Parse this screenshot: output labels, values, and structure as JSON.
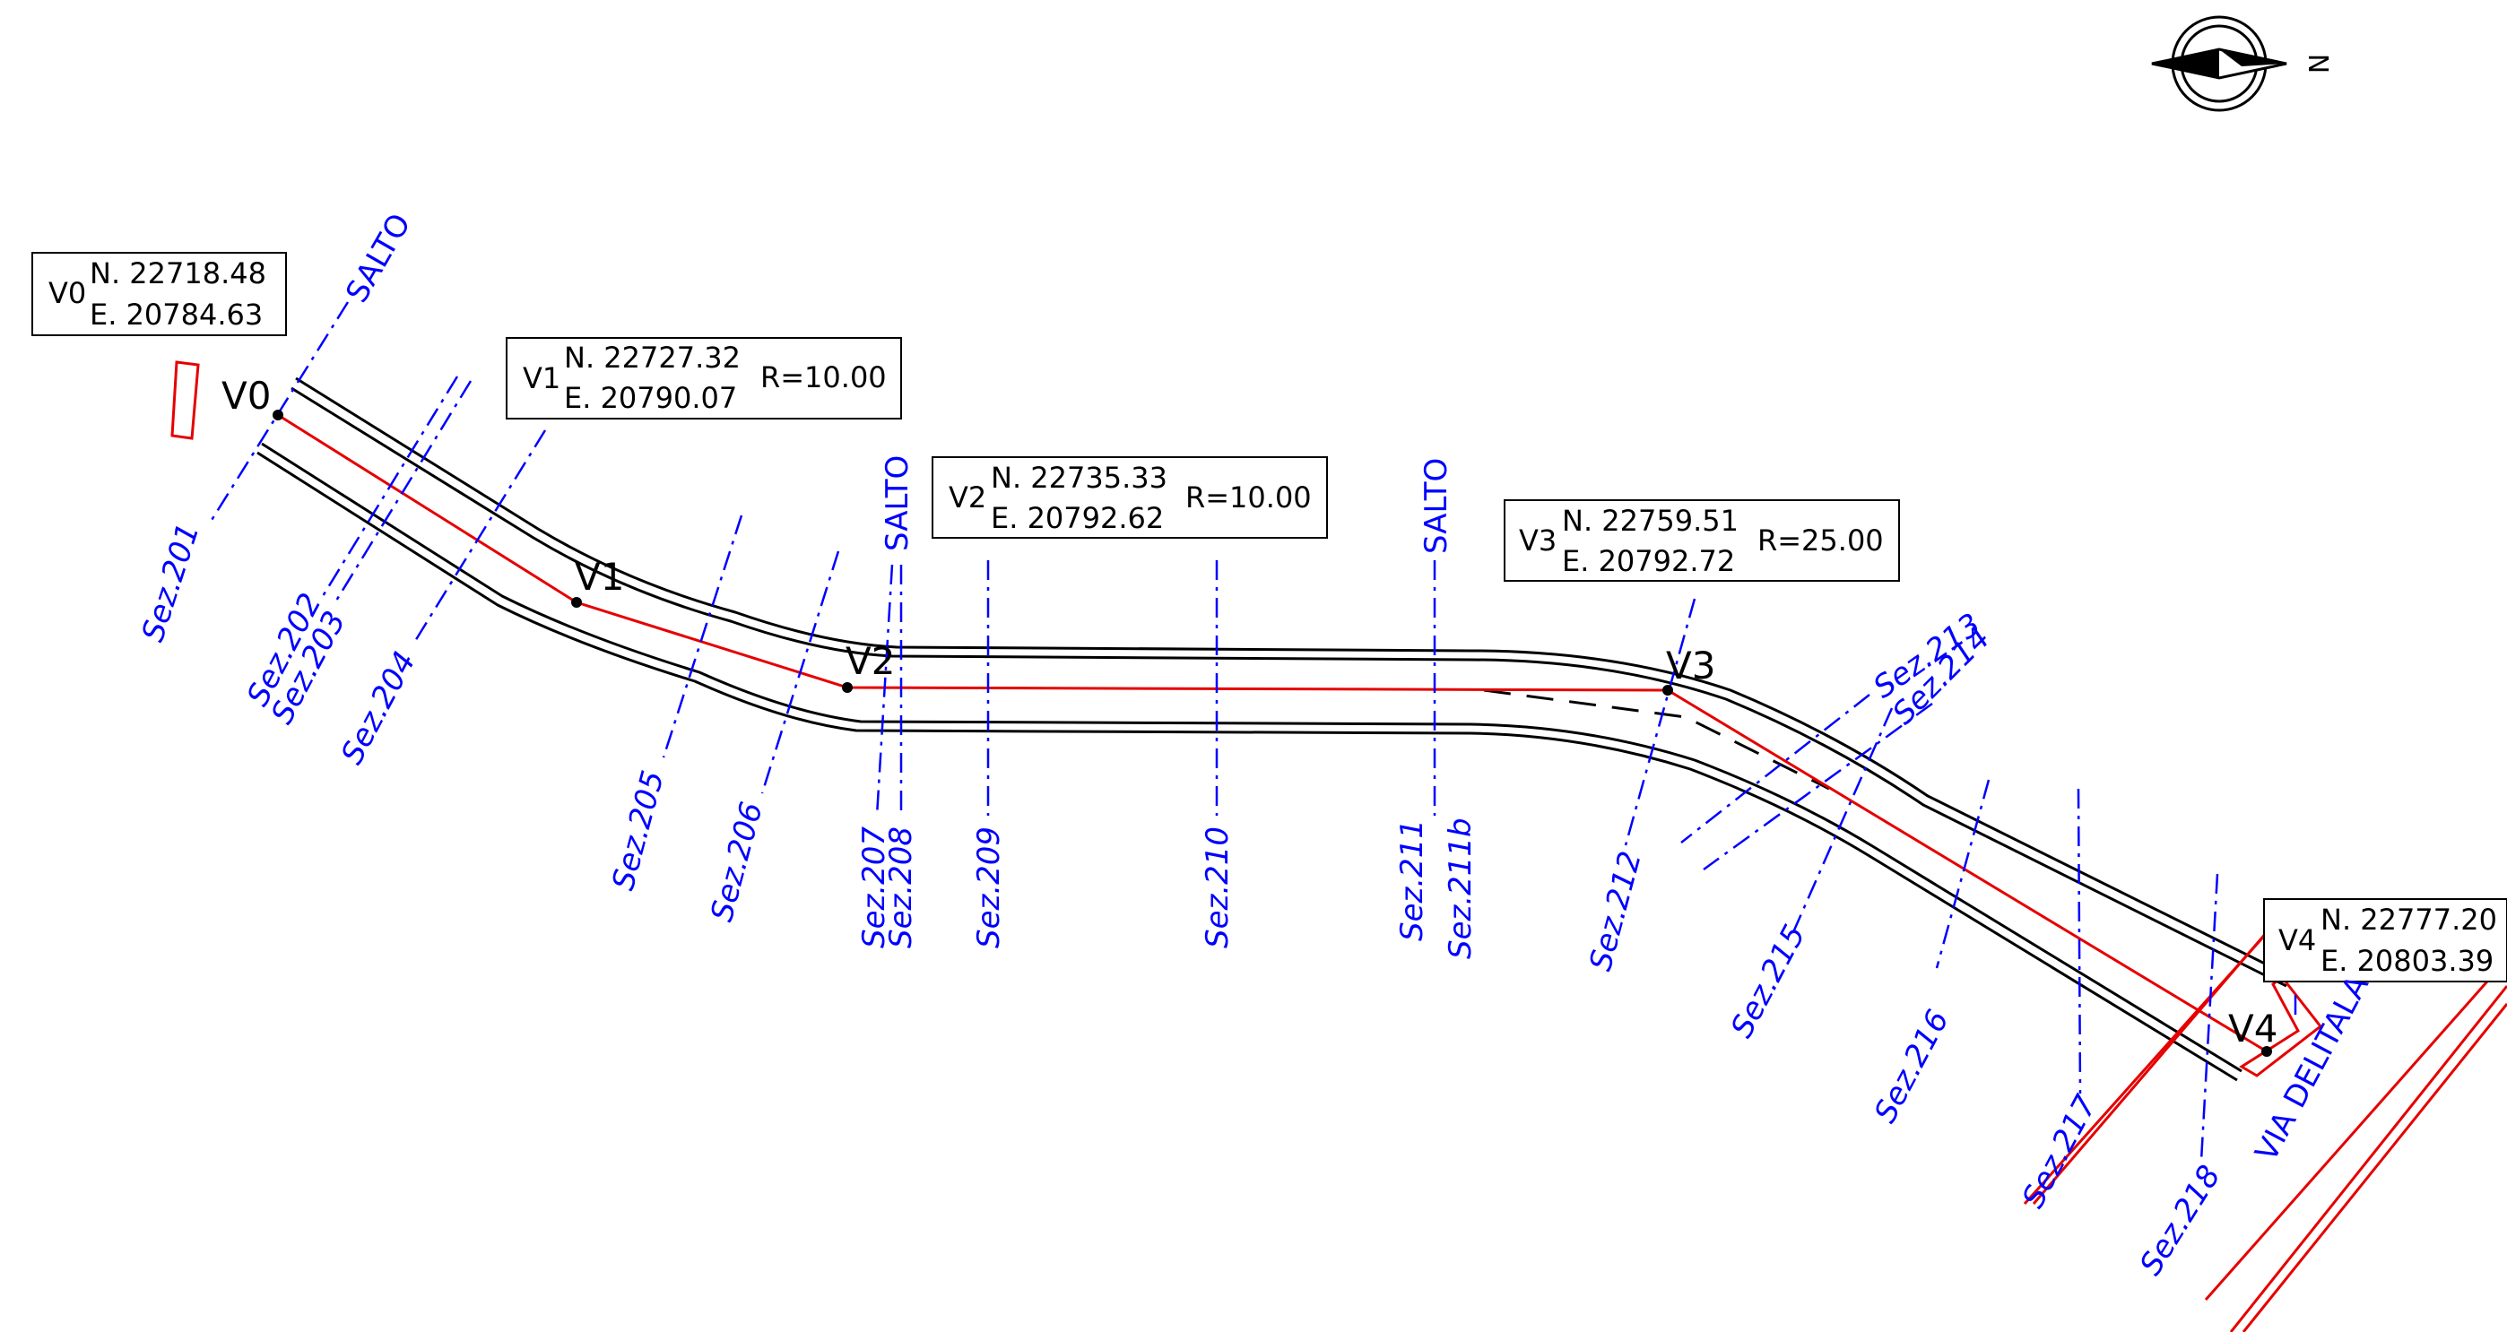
{
  "colors": {
    "alignment": "#e60000",
    "road_edge": "#000000",
    "section_line": "#0000ff",
    "background": "#ffffff"
  },
  "north": {
    "icon": "north-arrow-icon",
    "label": "N"
  },
  "vertices": [
    {
      "id": "V0",
      "label": "V0",
      "north": "N. 22718.48",
      "east": "E. 20784.63",
      "radius": ""
    },
    {
      "id": "V1",
      "label": "V1",
      "north": "N. 22727.32",
      "east": "E. 20790.07",
      "radius": "R=10.00"
    },
    {
      "id": "V2",
      "label": "V2",
      "north": "N. 22735.33",
      "east": "E. 20792.62",
      "radius": "R=10.00"
    },
    {
      "id": "V3",
      "label": "V3",
      "north": "N. 22759.51",
      "east": "E. 20792.72",
      "radius": "R=25.00"
    },
    {
      "id": "V4",
      "label": "V4",
      "north": "N. 22777.20",
      "east": "E. 20803.39",
      "radius": ""
    }
  ],
  "sections": [
    "Sez.201",
    "Sez.202",
    "Sez.203",
    "Sez.204",
    "Sez.205",
    "Sez.206",
    "Sez.207",
    "Sez.208",
    "Sez.209",
    "Sez.210",
    "Sez.211",
    "Sez.211b",
    "Sez.212",
    "Sez.213",
    "Sez.214",
    "Sez.215",
    "Sez.216",
    "Sez.217",
    "Sez.218"
  ],
  "salto_labels": [
    "SALTO",
    "SALTO",
    "SALTO"
  ],
  "street_label": "VIA  DELITALA"
}
